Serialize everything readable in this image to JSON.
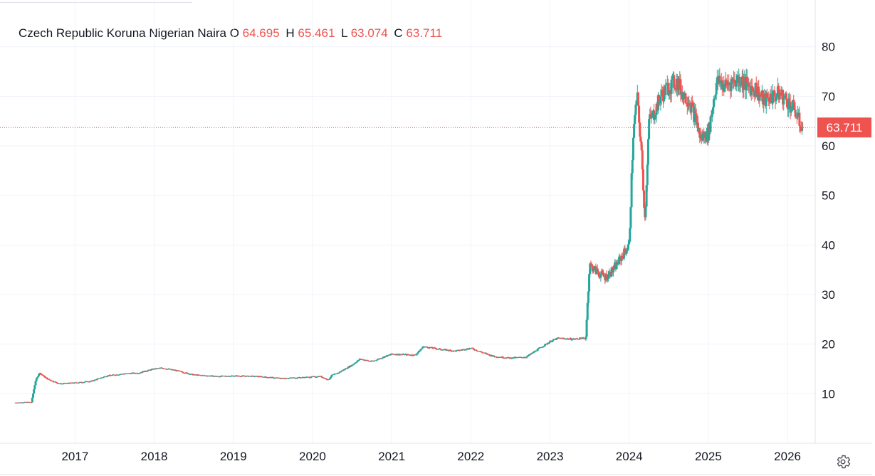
{
  "chart_data": {
    "type": "candlestick",
    "title": "Czech Republic Koruna Nigerian Naira",
    "ohlc_legend": [
      {
        "key": "O",
        "value": "64.695"
      },
      {
        "key": "H",
        "value": "65.461"
      },
      {
        "key": "L",
        "value": "63.074"
      },
      {
        "key": "C",
        "value": "63.711"
      }
    ],
    "last_price_label": "63.711",
    "last_price": 63.711,
    "x_ticks": [
      "2017",
      "2018",
      "2019",
      "2020",
      "2021",
      "2022",
      "2023",
      "2024",
      "2025",
      "2026"
    ],
    "y_ticks": [
      "10",
      "20",
      "30",
      "40",
      "50",
      "60",
      "70",
      "80"
    ],
    "ylim": [
      0,
      88
    ],
    "xlim": [
      2016.25,
      2026.35
    ],
    "grid": true,
    "up_color": "#26a69a",
    "down_color": "#ef5350",
    "series": {
      "date": [
        2016.25,
        2016.45,
        2016.5,
        2016.55,
        2016.65,
        2016.8,
        2017.0,
        2017.2,
        2017.4,
        2017.6,
        2017.8,
        2018.0,
        2018.1,
        2018.3,
        2018.5,
        2018.8,
        2019.0,
        2019.3,
        2019.6,
        2019.9,
        2020.1,
        2020.2,
        2020.25,
        2020.3,
        2020.5,
        2020.6,
        2020.75,
        2021.0,
        2021.3,
        2021.4,
        2021.6,
        2021.8,
        2022.0,
        2022.2,
        2022.3,
        2022.5,
        2022.7,
        2022.85,
        2023.0,
        2023.1,
        2023.3,
        2023.4,
        2023.45,
        2023.5,
        2023.6,
        2023.7,
        2023.8,
        2023.9,
        2024.0,
        2024.05,
        2024.1,
        2024.15,
        2024.2,
        2024.25,
        2024.3,
        2024.4,
        2024.5,
        2024.6,
        2024.7,
        2024.75,
        2024.85,
        2024.9,
        2025.0,
        2025.1,
        2025.15,
        2025.2,
        2025.3,
        2025.4,
        2025.5,
        2025.6,
        2025.7,
        2025.8,
        2025.9,
        2026.0,
        2026.1,
        2026.15,
        2026.2
      ],
      "close": [
        8.2,
        8.3,
        12.5,
        14.2,
        13.0,
        12.0,
        12.2,
        12.5,
        13.6,
        14.0,
        14.2,
        15.0,
        15.2,
        14.6,
        13.8,
        13.5,
        13.6,
        13.5,
        13.1,
        13.3,
        13.5,
        12.8,
        13.8,
        14.0,
        15.8,
        17.0,
        16.5,
        18.0,
        17.8,
        19.5,
        19.0,
        18.6,
        19.2,
        18.0,
        17.5,
        17.2,
        17.4,
        19.0,
        20.5,
        21.2,
        21.0,
        21.2,
        21.0,
        36.0,
        34.5,
        33.5,
        35.0,
        37.5,
        40.0,
        62.0,
        70.0,
        60.0,
        45.0,
        65.0,
        66.0,
        70.0,
        72.0,
        73.0,
        70.0,
        69.5,
        65.0,
        61.5,
        62.5,
        72.5,
        73.0,
        72.0,
        73.0,
        73.5,
        72.0,
        71.5,
        69.0,
        70.0,
        70.5,
        69.0,
        67.0,
        64.7,
        63.711
      ]
    }
  },
  "chart_ui": {
    "settings_icon": "gear-icon"
  }
}
